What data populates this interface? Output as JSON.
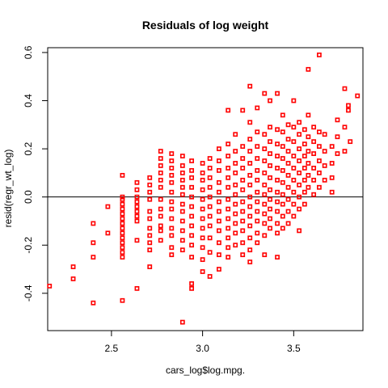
{
  "chart_data": {
    "type": "scatter",
    "title": "Residuals of log weight",
    "xlabel": "cars_log$log.mpg.",
    "ylabel": "resid(regr_wt_log)",
    "xlim": [
      2.15,
      3.88
    ],
    "ylim": [
      -0.555,
      0.62
    ],
    "xticks": [
      2.5,
      3.0,
      3.5
    ],
    "xtick_labels": [
      "2.5",
      "3.0",
      "3.5"
    ],
    "yticks": [
      -0.4,
      -0.2,
      0.0,
      0.2,
      0.4,
      0.6
    ],
    "ytick_labels": [
      "-0.4",
      "-0.2",
      "0.0",
      "0.2",
      "0.4",
      "0.6"
    ],
    "hline": 0.0,
    "grid": false,
    "marker_color": "#ff0000",
    "marker": "open-square",
    "points": [
      [
        2.16,
        -0.37
      ],
      [
        2.29,
        -0.29
      ],
      [
        2.29,
        -0.34
      ],
      [
        2.4,
        -0.44
      ],
      [
        2.4,
        -0.25
      ],
      [
        2.4,
        -0.19
      ],
      [
        2.4,
        -0.11
      ],
      [
        2.48,
        -0.15
      ],
      [
        2.48,
        -0.04
      ],
      [
        2.56,
        0.09
      ],
      [
        2.56,
        0.0
      ],
      [
        2.56,
        -0.01
      ],
      [
        2.56,
        -0.03
      ],
      [
        2.56,
        -0.05
      ],
      [
        2.56,
        -0.07
      ],
      [
        2.56,
        -0.09
      ],
      [
        2.56,
        -0.11
      ],
      [
        2.56,
        -0.13
      ],
      [
        2.56,
        -0.15
      ],
      [
        2.56,
        -0.17
      ],
      [
        2.56,
        -0.19
      ],
      [
        2.56,
        -0.21
      ],
      [
        2.56,
        -0.23
      ],
      [
        2.56,
        -0.25
      ],
      [
        2.56,
        -0.43
      ],
      [
        2.64,
        0.06
      ],
      [
        2.64,
        0.03
      ],
      [
        2.64,
        0.0
      ],
      [
        2.64,
        -0.02
      ],
      [
        2.64,
        -0.04
      ],
      [
        2.64,
        -0.06
      ],
      [
        2.64,
        -0.08
      ],
      [
        2.64,
        -0.1
      ],
      [
        2.64,
        -0.18
      ],
      [
        2.64,
        -0.38
      ],
      [
        2.71,
        0.08
      ],
      [
        2.71,
        0.05
      ],
      [
        2.71,
        0.02
      ],
      [
        2.71,
        -0.01
      ],
      [
        2.71,
        -0.06
      ],
      [
        2.71,
        -0.09
      ],
      [
        2.71,
        -0.13
      ],
      [
        2.71,
        -0.16
      ],
      [
        2.71,
        -0.19
      ],
      [
        2.71,
        -0.22
      ],
      [
        2.71,
        -0.29
      ],
      [
        2.77,
        0.19
      ],
      [
        2.77,
        0.16
      ],
      [
        2.77,
        0.13
      ],
      [
        2.77,
        0.1
      ],
      [
        2.77,
        0.07
      ],
      [
        2.77,
        0.04
      ],
      [
        2.77,
        -0.01
      ],
      [
        2.77,
        -0.05
      ],
      [
        2.77,
        -0.08
      ],
      [
        2.77,
        -0.12
      ],
      [
        2.77,
        -0.14
      ],
      [
        2.77,
        -0.18
      ],
      [
        2.83,
        0.18
      ],
      [
        2.83,
        0.15
      ],
      [
        2.83,
        0.12
      ],
      [
        2.83,
        0.09
      ],
      [
        2.83,
        0.06
      ],
      [
        2.83,
        0.02
      ],
      [
        2.83,
        -0.02
      ],
      [
        2.83,
        -0.05
      ],
      [
        2.83,
        -0.09
      ],
      [
        2.83,
        -0.13
      ],
      [
        2.83,
        -0.16
      ],
      [
        2.83,
        -0.21
      ],
      [
        2.83,
        -0.24
      ],
      [
        2.89,
        0.17
      ],
      [
        2.89,
        0.13
      ],
      [
        2.89,
        0.1
      ],
      [
        2.89,
        0.07
      ],
      [
        2.89,
        0.04
      ],
      [
        2.89,
        0.01
      ],
      [
        2.89,
        -0.03
      ],
      [
        2.89,
        -0.06
      ],
      [
        2.89,
        -0.1
      ],
      [
        2.89,
        -0.14
      ],
      [
        2.89,
        -0.18
      ],
      [
        2.89,
        -0.22
      ],
      [
        2.89,
        -0.52
      ],
      [
        2.94,
        0.15
      ],
      [
        2.94,
        0.11
      ],
      [
        2.94,
        0.08
      ],
      [
        2.94,
        0.04
      ],
      [
        2.94,
        0.0
      ],
      [
        2.94,
        -0.04
      ],
      [
        2.94,
        -0.08
      ],
      [
        2.94,
        -0.12
      ],
      [
        2.94,
        -0.16
      ],
      [
        2.94,
        -0.2
      ],
      [
        2.94,
        -0.25
      ],
      [
        2.94,
        -0.36
      ],
      [
        2.94,
        -0.38
      ],
      [
        3.0,
        0.14
      ],
      [
        3.0,
        0.1
      ],
      [
        3.0,
        0.07
      ],
      [
        3.0,
        0.03
      ],
      [
        3.0,
        -0.01
      ],
      [
        3.0,
        -0.05
      ],
      [
        3.0,
        -0.09
      ],
      [
        3.0,
        -0.13
      ],
      [
        3.0,
        -0.17
      ],
      [
        3.0,
        -0.21
      ],
      [
        3.0,
        -0.26
      ],
      [
        3.0,
        -0.31
      ],
      [
        3.04,
        0.16
      ],
      [
        3.04,
        0.12
      ],
      [
        3.04,
        0.08
      ],
      [
        3.04,
        0.04
      ],
      [
        3.04,
        0.0
      ],
      [
        3.04,
        -0.04
      ],
      [
        3.04,
        -0.08
      ],
      [
        3.04,
        -0.12
      ],
      [
        3.04,
        -0.17
      ],
      [
        3.04,
        -0.23
      ],
      [
        3.04,
        -0.33
      ],
      [
        3.09,
        0.2
      ],
      [
        3.09,
        0.15
      ],
      [
        3.09,
        0.11
      ],
      [
        3.09,
        0.06
      ],
      [
        3.09,
        0.02
      ],
      [
        3.09,
        -0.02
      ],
      [
        3.09,
        -0.06
      ],
      [
        3.09,
        -0.1
      ],
      [
        3.09,
        -0.14
      ],
      [
        3.09,
        -0.19
      ],
      [
        3.09,
        -0.24
      ],
      [
        3.09,
        -0.3
      ],
      [
        3.14,
        0.36
      ],
      [
        3.14,
        0.22
      ],
      [
        3.14,
        0.17
      ],
      [
        3.14,
        0.12
      ],
      [
        3.14,
        0.08
      ],
      [
        3.14,
        0.04
      ],
      [
        3.14,
        -0.01
      ],
      [
        3.14,
        -0.05
      ],
      [
        3.14,
        -0.09
      ],
      [
        3.14,
        -0.13
      ],
      [
        3.14,
        -0.17
      ],
      [
        3.14,
        -0.21
      ],
      [
        3.14,
        -0.25
      ],
      [
        3.18,
        0.26
      ],
      [
        3.18,
        0.19
      ],
      [
        3.18,
        0.14
      ],
      [
        3.18,
        0.1
      ],
      [
        3.18,
        0.05
      ],
      [
        3.18,
        0.01
      ],
      [
        3.18,
        -0.03
      ],
      [
        3.18,
        -0.07
      ],
      [
        3.18,
        -0.11
      ],
      [
        3.18,
        -0.15
      ],
      [
        3.18,
        -0.2
      ],
      [
        3.22,
        0.36
      ],
      [
        3.22,
        0.21
      ],
      [
        3.22,
        0.16
      ],
      [
        3.22,
        0.12
      ],
      [
        3.22,
        0.07
      ],
      [
        3.22,
        0.03
      ],
      [
        3.22,
        -0.02
      ],
      [
        3.22,
        -0.06
      ],
      [
        3.22,
        -0.1
      ],
      [
        3.22,
        -0.14
      ],
      [
        3.22,
        -0.19
      ],
      [
        3.22,
        -0.24
      ],
      [
        3.26,
        0.46
      ],
      [
        3.26,
        0.31
      ],
      [
        3.26,
        0.24
      ],
      [
        3.26,
        0.19
      ],
      [
        3.26,
        0.14
      ],
      [
        3.26,
        0.09
      ],
      [
        3.26,
        0.05
      ],
      [
        3.26,
        0.0
      ],
      [
        3.26,
        -0.04
      ],
      [
        3.26,
        -0.08
      ],
      [
        3.26,
        -0.12
      ],
      [
        3.26,
        -0.17
      ],
      [
        3.26,
        -0.22
      ],
      [
        3.26,
        -0.27
      ],
      [
        3.3,
        0.37
      ],
      [
        3.3,
        0.27
      ],
      [
        3.3,
        0.21
      ],
      [
        3.3,
        0.16
      ],
      [
        3.3,
        0.11
      ],
      [
        3.3,
        0.07
      ],
      [
        3.3,
        0.02
      ],
      [
        3.3,
        -0.02
      ],
      [
        3.3,
        -0.06
      ],
      [
        3.3,
        -0.1
      ],
      [
        3.3,
        -0.15
      ],
      [
        3.3,
        -0.19
      ],
      [
        3.34,
        0.43
      ],
      [
        3.34,
        0.26
      ],
      [
        3.34,
        0.2
      ],
      [
        3.34,
        0.15
      ],
      [
        3.34,
        0.1
      ],
      [
        3.34,
        0.05
      ],
      [
        3.34,
        0.01
      ],
      [
        3.34,
        -0.03
      ],
      [
        3.34,
        -0.07
      ],
      [
        3.34,
        -0.11
      ],
      [
        3.34,
        -0.16
      ],
      [
        3.34,
        -0.24
      ],
      [
        3.37,
        0.4
      ],
      [
        3.37,
        0.29
      ],
      [
        3.37,
        0.23
      ],
      [
        3.37,
        0.18
      ],
      [
        3.37,
        0.13
      ],
      [
        3.37,
        0.08
      ],
      [
        3.37,
        0.03
      ],
      [
        3.37,
        -0.01
      ],
      [
        3.37,
        -0.05
      ],
      [
        3.37,
        -0.09
      ],
      [
        3.37,
        -0.13
      ],
      [
        3.41,
        0.43
      ],
      [
        3.41,
        0.28
      ],
      [
        3.41,
        0.22
      ],
      [
        3.41,
        0.17
      ],
      [
        3.41,
        0.12
      ],
      [
        3.41,
        0.07
      ],
      [
        3.41,
        0.02
      ],
      [
        3.41,
        -0.02
      ],
      [
        3.41,
        -0.06
      ],
      [
        3.41,
        -0.11
      ],
      [
        3.41,
        -0.15
      ],
      [
        3.41,
        -0.25
      ],
      [
        3.44,
        0.34
      ],
      [
        3.44,
        0.27
      ],
      [
        3.44,
        0.21
      ],
      [
        3.44,
        0.16
      ],
      [
        3.44,
        0.11
      ],
      [
        3.44,
        0.06
      ],
      [
        3.44,
        0.01
      ],
      [
        3.44,
        -0.03
      ],
      [
        3.44,
        -0.08
      ],
      [
        3.44,
        -0.13
      ],
      [
        3.47,
        0.3
      ],
      [
        3.47,
        0.24
      ],
      [
        3.47,
        0.19
      ],
      [
        3.47,
        0.14
      ],
      [
        3.47,
        0.09
      ],
      [
        3.47,
        0.04
      ],
      [
        3.47,
        -0.01
      ],
      [
        3.47,
        -0.06
      ],
      [
        3.47,
        -0.11
      ],
      [
        3.5,
        0.4
      ],
      [
        3.5,
        0.29
      ],
      [
        3.5,
        0.23
      ],
      [
        3.5,
        0.17
      ],
      [
        3.5,
        0.12
      ],
      [
        3.5,
        0.07
      ],
      [
        3.5,
        0.02
      ],
      [
        3.5,
        -0.03
      ],
      [
        3.5,
        -0.08
      ],
      [
        3.53,
        0.31
      ],
      [
        3.53,
        0.26
      ],
      [
        3.53,
        0.2
      ],
      [
        3.53,
        0.15
      ],
      [
        3.53,
        0.1
      ],
      [
        3.53,
        0.05
      ],
      [
        3.53,
        0.0
      ],
      [
        3.53,
        -0.05
      ],
      [
        3.53,
        -0.14
      ],
      [
        3.56,
        0.28
      ],
      [
        3.56,
        0.22
      ],
      [
        3.56,
        0.17
      ],
      [
        3.56,
        0.12
      ],
      [
        3.56,
        0.07
      ],
      [
        3.56,
        0.02
      ],
      [
        3.56,
        -0.03
      ],
      [
        3.58,
        0.53
      ],
      [
        3.58,
        0.34
      ],
      [
        3.58,
        0.25
      ],
      [
        3.58,
        0.19
      ],
      [
        3.58,
        0.14
      ],
      [
        3.58,
        0.09
      ],
      [
        3.58,
        0.04
      ],
      [
        3.61,
        0.29
      ],
      [
        3.61,
        0.23
      ],
      [
        3.61,
        0.18
      ],
      [
        3.61,
        0.12
      ],
      [
        3.61,
        0.07
      ],
      [
        3.61,
        0.01
      ],
      [
        3.64,
        0.59
      ],
      [
        3.64,
        0.27
      ],
      [
        3.64,
        0.21
      ],
      [
        3.64,
        0.15
      ],
      [
        3.64,
        0.1
      ],
      [
        3.64,
        0.04
      ],
      [
        3.67,
        0.26
      ],
      [
        3.67,
        0.19
      ],
      [
        3.67,
        0.13
      ],
      [
        3.67,
        0.07
      ],
      [
        3.71,
        0.21
      ],
      [
        3.71,
        0.14
      ],
      [
        3.71,
        0.08
      ],
      [
        3.71,
        0.02
      ],
      [
        3.74,
        0.32
      ],
      [
        3.74,
        0.25
      ],
      [
        3.74,
        0.18
      ],
      [
        3.78,
        0.45
      ],
      [
        3.78,
        0.29
      ],
      [
        3.78,
        0.19
      ],
      [
        3.8,
        0.38
      ],
      [
        3.8,
        0.36
      ],
      [
        3.81,
        0.23
      ],
      [
        3.85,
        0.42
      ]
    ]
  }
}
